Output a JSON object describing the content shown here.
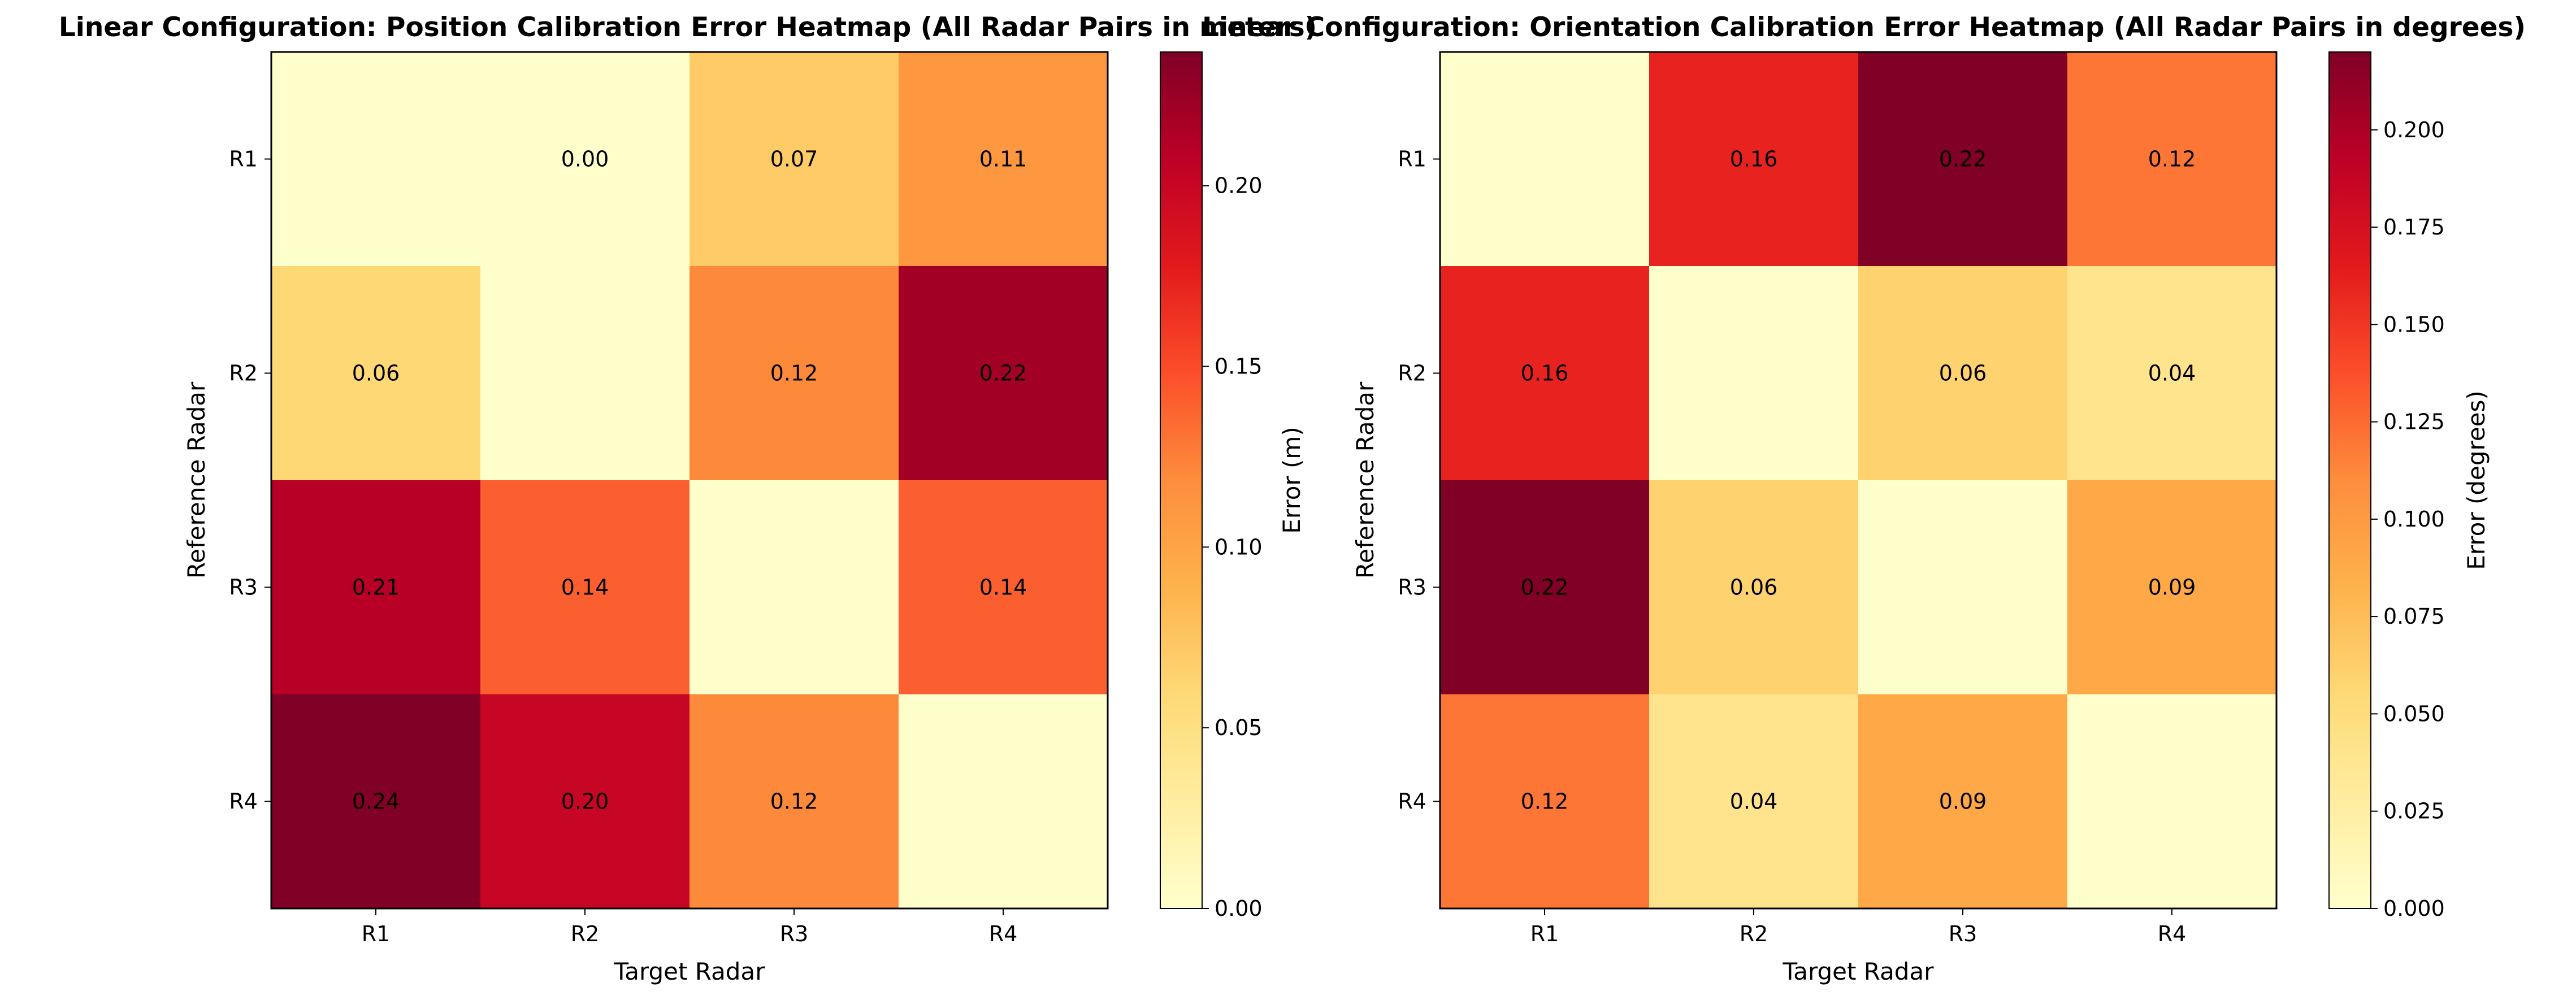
{
  "chart_data": [
    {
      "type": "heatmap",
      "title": "Linear Configuration: Position Calibration Error Heatmap (All Radar Pairs in meters)",
      "xlabel": "Target Radar",
      "ylabel": "Reference Radar",
      "x_categories": [
        "R1",
        "R2",
        "R3",
        "R4"
      ],
      "y_categories": [
        "R1",
        "R2",
        "R3",
        "R4"
      ],
      "values": [
        [
          0.0,
          0.0,
          0.07,
          0.11
        ],
        [
          0.06,
          0.0,
          0.12,
          0.22
        ],
        [
          0.21,
          0.14,
          0.0,
          0.14
        ],
        [
          0.24,
          0.2,
          0.12,
          0.0
        ]
      ],
      "cell_labels": [
        [
          "",
          "0.00",
          "0.07",
          "0.11"
        ],
        [
          "0.06",
          "",
          "0.12",
          "0.22"
        ],
        [
          "0.21",
          "0.14",
          "",
          "0.14"
        ],
        [
          "0.24",
          "0.20",
          "0.12",
          ""
        ]
      ],
      "colorbar": {
        "label": "Error (m)",
        "range": [
          0,
          0.237
        ],
        "ticks": [
          0.0,
          0.05,
          0.1,
          0.15,
          0.2
        ],
        "tick_labels": [
          "0.00",
          "0.05",
          "0.10",
          "0.15",
          "0.20"
        ],
        "colormap": "YlOrRd"
      }
    },
    {
      "type": "heatmap",
      "title": "Linear Configuration: Orientation Calibration Error Heatmap (All Radar Pairs in degrees)",
      "xlabel": "Target Radar",
      "ylabel": "Reference Radar",
      "x_categories": [
        "R1",
        "R2",
        "R3",
        "R4"
      ],
      "y_categories": [
        "R1",
        "R2",
        "R3",
        "R4"
      ],
      "values": [
        [
          0.0,
          0.16,
          0.22,
          0.12
        ],
        [
          0.16,
          0.0,
          0.06,
          0.04
        ],
        [
          0.22,
          0.06,
          0.0,
          0.09
        ],
        [
          0.12,
          0.04,
          0.09,
          0.0
        ]
      ],
      "cell_labels": [
        [
          "",
          "0.16",
          "0.22",
          "0.12"
        ],
        [
          "0.16",
          "",
          "0.06",
          "0.04"
        ],
        [
          "0.22",
          "0.06",
          "",
          "0.09"
        ],
        [
          "0.12",
          "0.04",
          "0.09",
          ""
        ]
      ],
      "colorbar": {
        "label": "Error (degrees)",
        "range": [
          0,
          0.22
        ],
        "ticks": [
          0.0,
          0.025,
          0.05,
          0.075,
          0.1,
          0.125,
          0.15,
          0.175,
          0.2
        ],
        "tick_labels": [
          "0.000",
          "0.025",
          "0.050",
          "0.075",
          "0.100",
          "0.125",
          "0.150",
          "0.175",
          "0.200"
        ],
        "colormap": "YlOrRd"
      }
    }
  ]
}
